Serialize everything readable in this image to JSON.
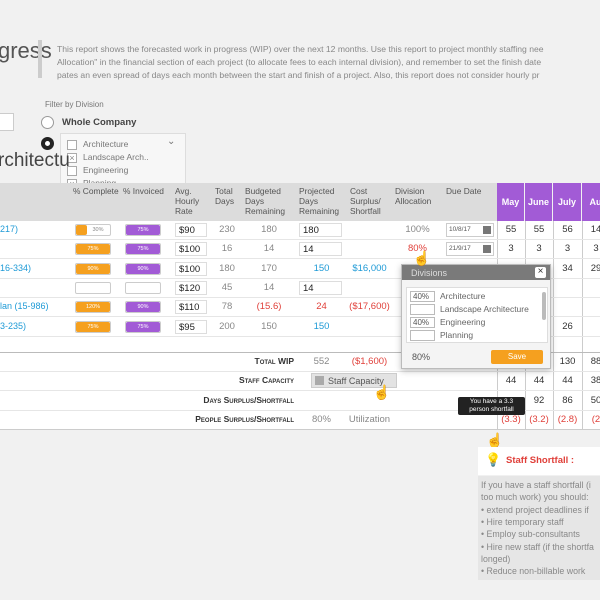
{
  "header": {
    "title": "gress",
    "description": [
      "This report shows the forecasted work in progress (WIP) over the next 12 months. Use this report to project monthly staffing nee",
      "Allocation\" in the financial section of each project (to allocate fees to each internal division), and remember to set the finish date",
      "pates an even spread of days each month between the start and finish of a project. Also, this report does not consider hourly pr"
    ]
  },
  "filter": {
    "label": "Filter by Division",
    "option": "Whole Company",
    "divisions": [
      {
        "name": "Architecture",
        "checked": false
      },
      {
        "name": "Landscape Arch..",
        "checked": true
      },
      {
        "name": "Engineering",
        "checked": false
      },
      {
        "name": "Planning",
        "checked": true
      }
    ]
  },
  "section_title": "rchitectu",
  "table": {
    "columns": [
      "% Complete",
      "% Invoiced",
      "Avg. Hourly Rate",
      "Total Days",
      "Budgeted Days Remaining",
      "Projected Days Remaining",
      "Cost Surplus/ Shortfall",
      "Division Allocation",
      "Due Date"
    ],
    "months": [
      "May",
      "June",
      "July",
      "Au"
    ],
    "rows": [
      {
        "cells": [
          {
            "text": "217)",
            "style": "link"
          },
          {
            "text": "30%",
            "style": "bar-orange"
          },
          {
            "text": "75%",
            "style": "bar-purple"
          },
          {
            "text": "$90",
            "style": "box"
          },
          {
            "text": "230"
          },
          {
            "text": "180"
          },
          {
            "text": "180",
            "style": "box"
          },
          null,
          {
            "text": "100%"
          },
          {
            "text": "10/8/17",
            "style": "date"
          },
          {
            "text": "55"
          },
          {
            "text": "55"
          },
          {
            "text": "56"
          },
          {
            "text": "14"
          }
        ]
      },
      {
        "cells": [
          null,
          {
            "text": "75%",
            "style": "bar-orange"
          },
          {
            "text": "75%",
            "style": "bar-purple"
          },
          {
            "text": "$100",
            "style": "box"
          },
          {
            "text": "16"
          },
          {
            "text": "14"
          },
          {
            "text": "14",
            "style": "box"
          },
          null,
          {
            "text": "80%",
            "style": "red"
          },
          {
            "text": "21/9/17",
            "style": "date"
          },
          {
            "text": "3"
          },
          {
            "text": "3"
          },
          {
            "text": "3"
          },
          {
            "text": "3"
          }
        ]
      },
      {
        "cells": [
          {
            "text": "16-334)",
            "style": "link"
          },
          {
            "text": "90%",
            "style": "bar-orange"
          },
          {
            "text": "90%",
            "style": "bar-purple"
          },
          {
            "text": "$100",
            "style": "box"
          },
          {
            "text": "180"
          },
          {
            "text": "170"
          },
          {
            "text": "150",
            "style": "blue"
          },
          {
            "text": "$16,000",
            "style": "blue"
          },
          null,
          null,
          null,
          null,
          {
            "text": "34"
          },
          {
            "text": "29"
          }
        ]
      },
      {
        "cells": [
          null,
          {
            "style": "bar-empty"
          },
          {
            "style": "bar-empty"
          },
          {
            "text": "$120",
            "style": "box"
          },
          {
            "text": "45"
          },
          {
            "text": "14"
          },
          {
            "text": "14",
            "style": "box"
          },
          null,
          null,
          null,
          null,
          null,
          null,
          null
        ]
      },
      {
        "cells": [
          {
            "text": "lan (15-986)",
            "style": "link"
          },
          {
            "text": "120%",
            "style": "bar-orange"
          },
          {
            "text": "90%",
            "style": "bar-purple"
          },
          {
            "text": "$110",
            "style": "box"
          },
          {
            "text": "78"
          },
          {
            "text": "(15.6)",
            "style": "red"
          },
          {
            "text": "24",
            "style": "red"
          },
          {
            "text": "($17,600)",
            "style": "red"
          },
          null,
          null,
          null,
          null,
          null,
          null
        ]
      },
      {
        "cells": [
          {
            "text": "3-235)",
            "style": "link"
          },
          {
            "text": "75%",
            "style": "bar-orange"
          },
          {
            "text": "75%",
            "style": "bar-purple"
          },
          {
            "text": "$95",
            "style": "box"
          },
          {
            "text": "200"
          },
          {
            "text": "150"
          },
          {
            "text": "150",
            "style": "blue"
          },
          null,
          null,
          null,
          null,
          null,
          {
            "text": "26"
          },
          null
        ]
      }
    ],
    "summary": [
      {
        "label": "Total WIP",
        "cells": [
          {
            "text": "552",
            "col": 6
          },
          {
            "text": "($1,600)",
            "col": 7,
            "style": "red"
          },
          {
            "text": "130",
            "col": 12
          },
          {
            "text": "88",
            "col": 13
          }
        ]
      },
      {
        "label": "Staff Capacity",
        "cells": [
          {
            "text": "Staff Capacity",
            "col": 6,
            "style": "button"
          },
          {
            "text": "44",
            "col": 10
          },
          {
            "text": "44",
            "col": 11
          },
          {
            "text": "44",
            "col": 12
          },
          {
            "text": "38",
            "col": 13
          }
        ]
      },
      {
        "label": "Days Surplus/Shortfall",
        "cells": [
          {
            "text": "92",
            "col": 11
          },
          {
            "text": "86",
            "col": 12
          },
          {
            "text": "50",
            "col": 13
          }
        ]
      },
      {
        "label": "People Surplus/Shortfall",
        "cells": [
          {
            "text": "80%",
            "col": 6
          },
          {
            "text": "Utilization",
            "col": 7
          },
          {
            "text": "(3.3)",
            "col": 10,
            "style": "red"
          },
          {
            "text": "(3.2)",
            "col": 11,
            "style": "red"
          },
          {
            "text": "(2.8)",
            "col": 12,
            "style": "red"
          },
          {
            "text": "(2",
            "col": 13,
            "style": "red"
          }
        ]
      }
    ]
  },
  "popup": {
    "title": "Divisions",
    "rows": [
      {
        "pct": "40%",
        "name": "Architecture"
      },
      {
        "name": "Landscape Architecture"
      },
      {
        "pct": "40%",
        "name": "Engineering"
      },
      {
        "name": "Planning"
      }
    ],
    "total": "80%",
    "button": "Save"
  },
  "tooltip": "You have a 3.3 person shortfall",
  "shortfall": {
    "title": "Staff Shortfall :",
    "lines": [
      "If you have a staff shortfall (i",
      "too much work) you should:",
      "• extend project deadlines if",
      "• Hire temporary staff",
      "• Employ sub-consultants",
      "• Hire new staff (if the shortfa",
      "longed)",
      "• Reduce non-billable work"
    ]
  }
}
